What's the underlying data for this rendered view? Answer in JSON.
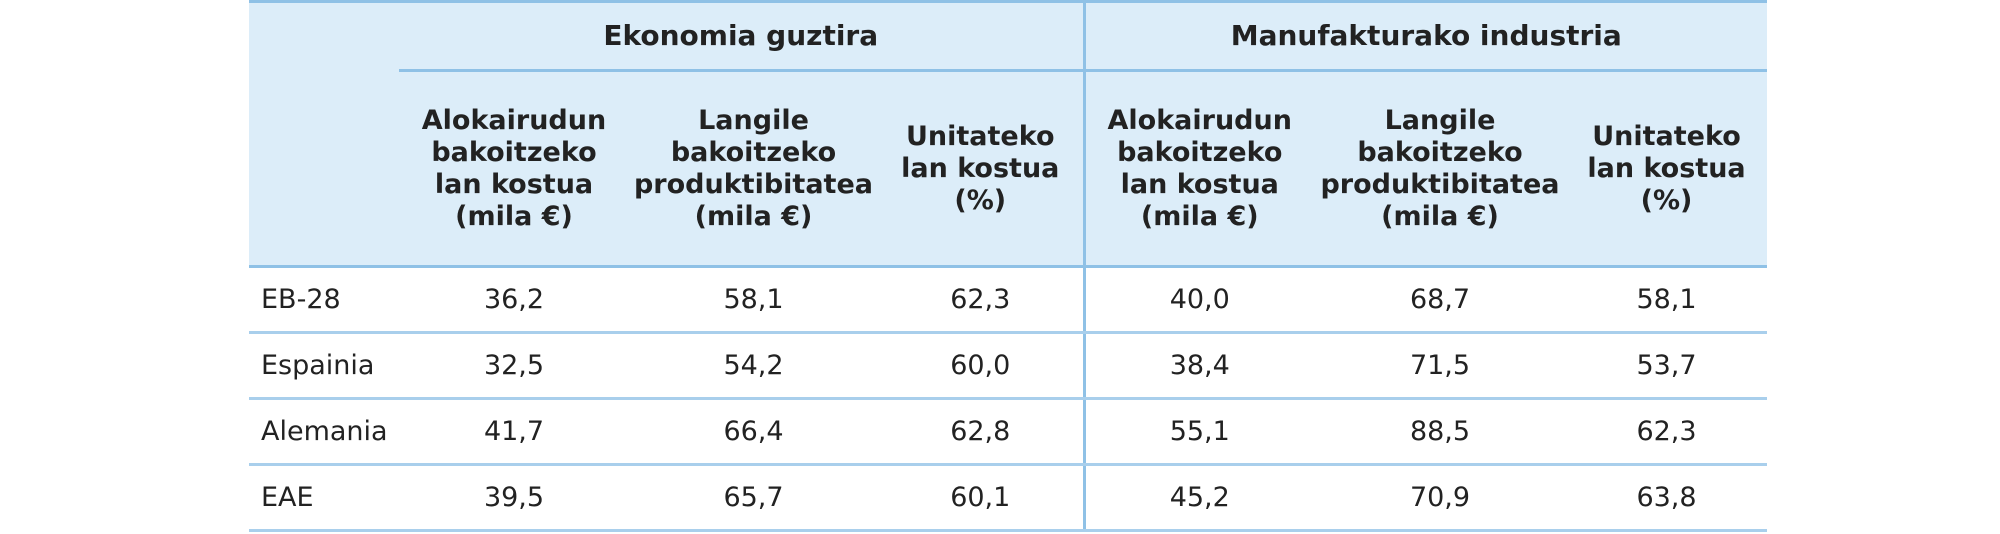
{
  "table": {
    "groups": [
      "Ekonomia guztira",
      "Manufakturako industria"
    ],
    "columns": [
      [
        "Alokairudun",
        "bakoitzeko",
        "lan kostua",
        "(mila €)"
      ],
      [
        "Langile",
        "bakoitzeko",
        "produktibitatea",
        "(mila €)"
      ],
      [
        "Unitateko",
        "lan kostua",
        "(%)"
      ],
      [
        "Alokairudun",
        "bakoitzeko",
        "lan kostua",
        "(mila €)"
      ],
      [
        "Langile",
        "bakoitzeko",
        "produktibitatea",
        "(mila €)"
      ],
      [
        "Unitateko",
        "lan kostua",
        "(%)"
      ]
    ],
    "rows": [
      [
        "EB-28",
        "36,2",
        "58,1",
        "62,3",
        "40,0",
        "68,7",
        "58,1"
      ],
      [
        "Espainia",
        "32,5",
        "54,2",
        "60,0",
        "38,4",
        "71,5",
        "53,7"
      ],
      [
        "Alemania",
        "41,7",
        "66,4",
        "62,8",
        "55,1",
        "88,5",
        "62,3"
      ],
      [
        "EAE",
        "39,5",
        "65,7",
        "60,1",
        "45,2",
        "70,9",
        "63,8"
      ]
    ]
  }
}
